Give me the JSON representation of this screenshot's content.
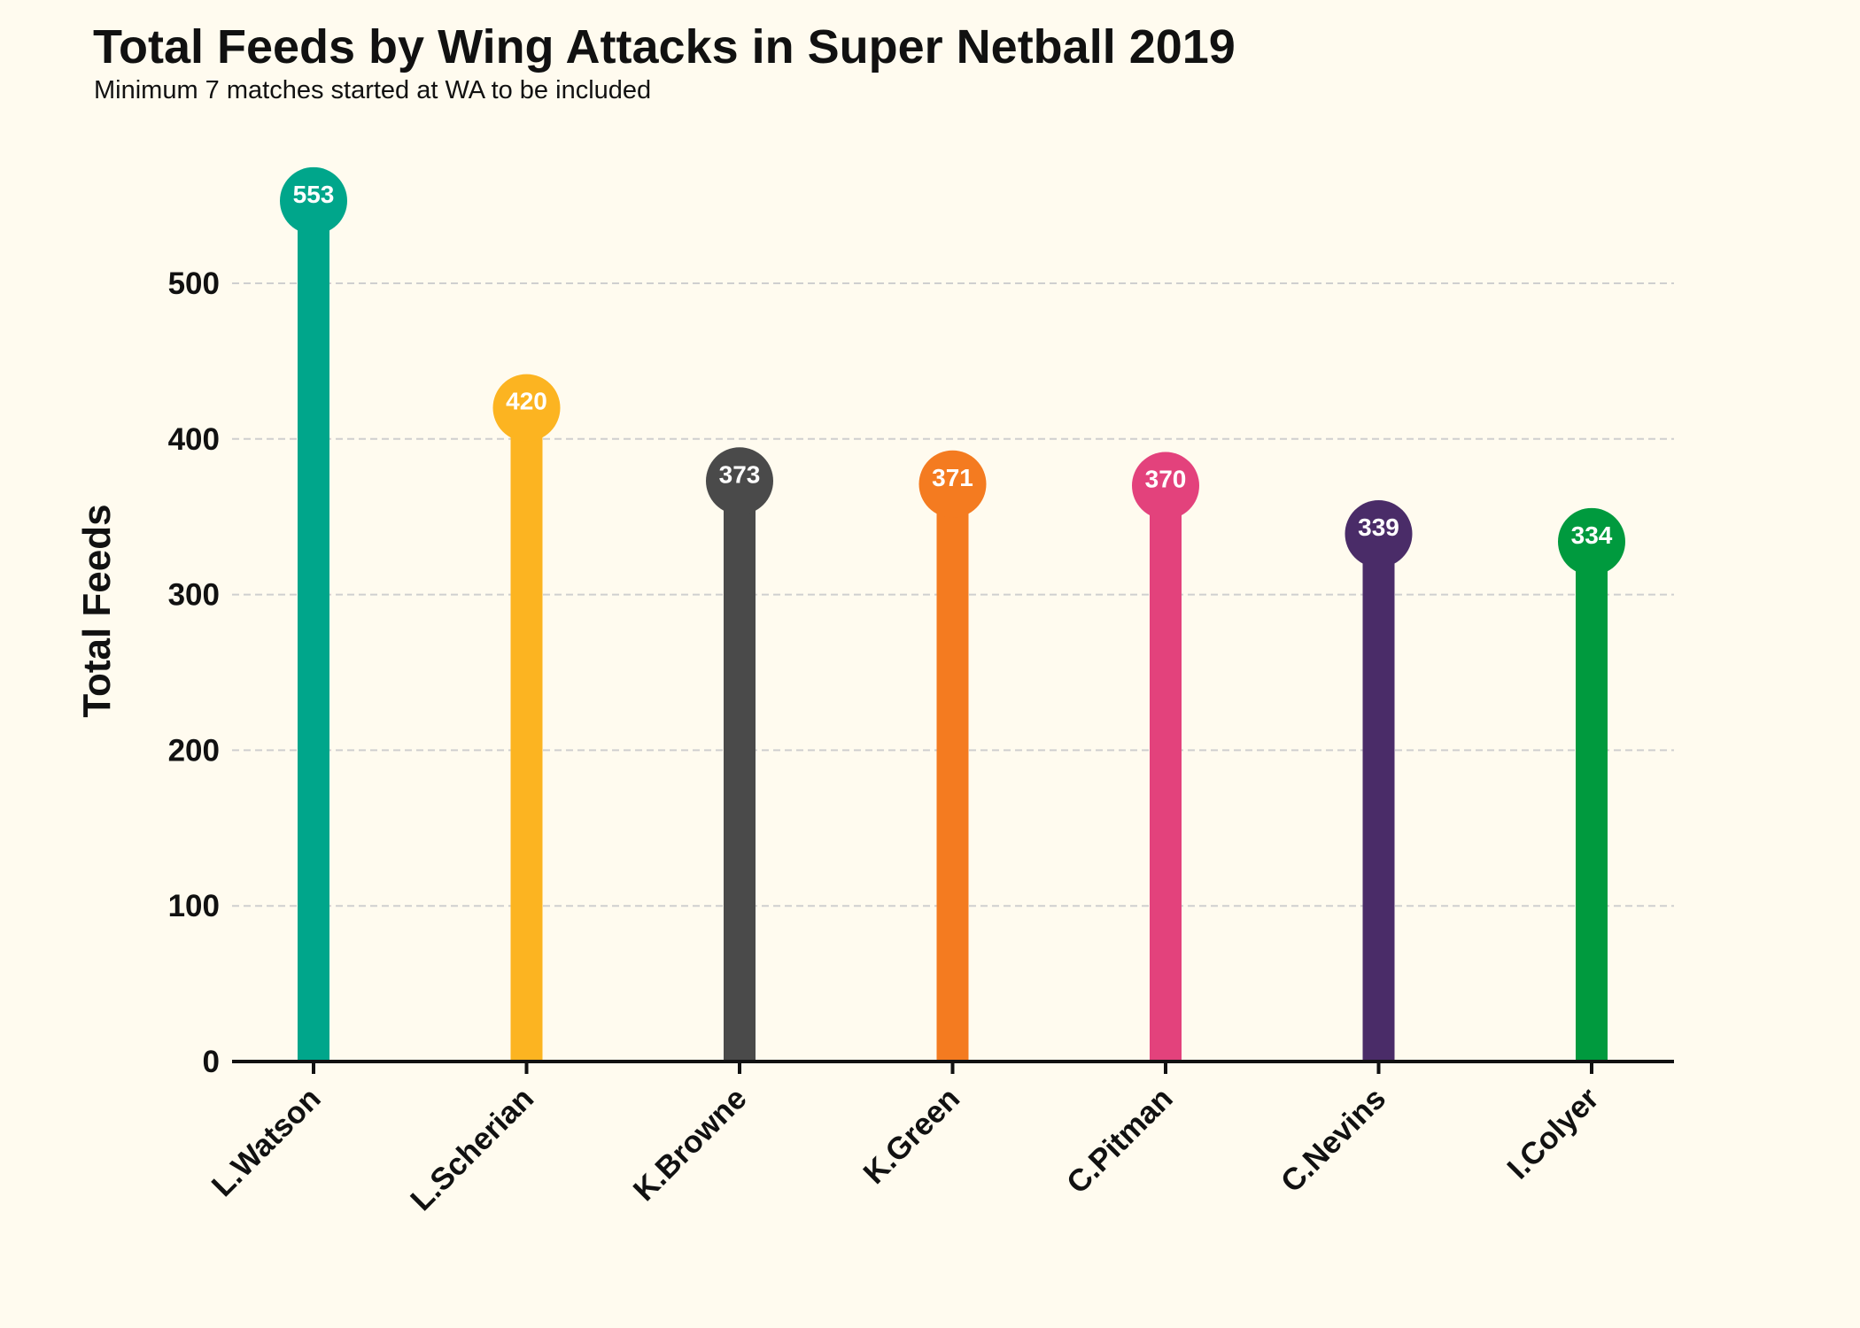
{
  "title": "Total Feeds by Wing Attacks in Super Netball 2019",
  "subtitle": "Minimum 7 matches started at WA to be included",
  "chart_data": {
    "type": "bar",
    "style": "lollipop",
    "title": "Total Feeds by Wing Attacks in Super Netball 2019",
    "subtitle": "Minimum 7 matches started at WA to be included",
    "xlabel": "",
    "ylabel": "Total Feeds",
    "categories": [
      "L.Watson",
      "L.Scherian",
      "K.Browne",
      "K.Green",
      "C.Pitman",
      "C.Nevins",
      "I.Colyer"
    ],
    "values": [
      553,
      420,
      373,
      371,
      370,
      339,
      334
    ],
    "colors": [
      "#00a68b",
      "#fcb421",
      "#4a4a4a",
      "#f47b20",
      "#e3427c",
      "#4a2c68",
      "#009a3e"
    ],
    "yticks": [
      0,
      100,
      200,
      300,
      400,
      500
    ],
    "ylim": [
      0,
      580
    ],
    "grid": "horizontal dashed",
    "legend": "none",
    "data_labels": true,
    "background": "#fffbef"
  }
}
